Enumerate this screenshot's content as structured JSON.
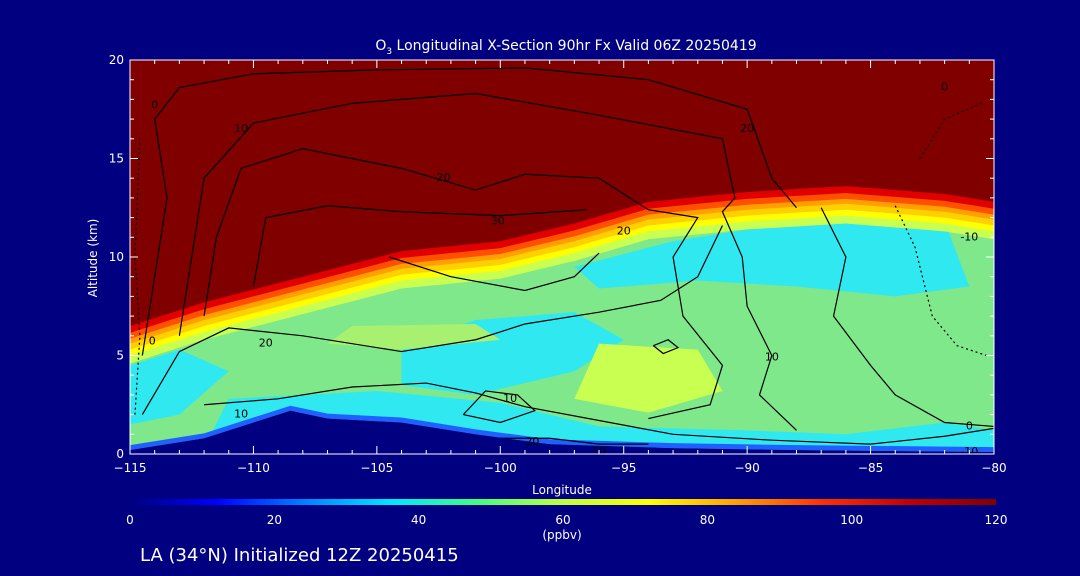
{
  "chart_data": {
    "type": "heatmap",
    "title_prefix": "O",
    "title_sub": "3",
    "title_rest": " Longitudinal X-Section 90hr  Fx Valid 06Z 20250419",
    "xlabel": "Longitude",
    "ylabel": "Altitude (km)",
    "xlim": [
      -115,
      -80
    ],
    "ylim": [
      0,
      20
    ],
    "x_ticks": [
      -115,
      -110,
      -105,
      -100,
      -95,
      -90,
      -85,
      -80
    ],
    "x_tick_labels": [
      "−115",
      "−110",
      "−105",
      "−100",
      "−95",
      "−90",
      "−85",
      "−80"
    ],
    "y_ticks": [
      0,
      5,
      10,
      15,
      20
    ],
    "y_tick_labels": [
      "0",
      "5",
      "10",
      "15",
      "20"
    ],
    "colorbar": {
      "range": [
        0,
        120
      ],
      "ticks": [
        0,
        20,
        40,
        60,
        80,
        100,
        120
      ],
      "tick_labels": [
        "0",
        "20",
        "40",
        "60",
        "80",
        "100",
        "120"
      ],
      "unit": "(ppbv)",
      "colors": [
        "#00007f",
        "#0000ff",
        "#0080ff",
        "#00e5ff",
        "#40ff80",
        "#c0ff40",
        "#ffff00",
        "#ffa000",
        "#ff3000",
        "#c00000",
        "#800000"
      ]
    },
    "field": {
      "description_levels": "ozone field roughly: ~50-60 ppbv near surface, ~60-70 ppbv mid troposphere, >120 ppbv above tropopause",
      "tropopause_km": [
        {
          "lon": -115,
          "km": 6.0
        },
        {
          "lon": -112,
          "km": 7.2
        },
        {
          "lon": -108,
          "km": 8.5
        },
        {
          "lon": -104,
          "km": 9.8
        },
        {
          "lon": -100,
          "km": 10.3
        },
        {
          "lon": -97,
          "km": 11.2
        },
        {
          "lon": -94,
          "km": 12.3
        },
        {
          "lon": -90,
          "km": 12.8
        },
        {
          "lon": -86,
          "km": 13.1
        },
        {
          "lon": -82,
          "km": 12.7
        },
        {
          "lon": -80,
          "km": 12.3
        }
      ],
      "terrain_km": [
        {
          "lon": -115,
          "km": 0.2
        },
        {
          "lon": -112,
          "km": 0.8
        },
        {
          "lon": -110,
          "km": 1.6
        },
        {
          "lon": -108.5,
          "km": 2.2
        },
        {
          "lon": -107,
          "km": 1.8
        },
        {
          "lon": -104,
          "km": 1.6
        },
        {
          "lon": -101,
          "km": 1.0
        },
        {
          "lon": -98,
          "km": 0.5
        },
        {
          "lon": -93,
          "km": 0.3
        },
        {
          "lon": -88,
          "km": 0.2
        },
        {
          "lon": -80,
          "km": 0.1
        }
      ]
    },
    "contour_labels": [
      {
        "text": "0",
        "lon": -114,
        "km": 17.7
      },
      {
        "text": "10",
        "lon": -110.5,
        "km": 16.5
      },
      {
        "text": "20",
        "lon": -102.3,
        "km": 14.0
      },
      {
        "text": "30",
        "lon": -100.1,
        "km": 11.8
      },
      {
        "text": "20",
        "lon": -95,
        "km": 11.3
      },
      {
        "text": "20",
        "lon": -90,
        "km": 16.5
      },
      {
        "text": "0",
        "lon": -82,
        "km": 18.6
      },
      {
        "text": "-10",
        "lon": -81,
        "km": 11.0
      },
      {
        "text": "0",
        "lon": -114.1,
        "km": 5.7
      },
      {
        "text": "20",
        "lon": -109.5,
        "km": 5.6
      },
      {
        "text": "10",
        "lon": -110.5,
        "km": 2.0
      },
      {
        "text": "10",
        "lon": -89,
        "km": 4.9
      },
      {
        "text": "10",
        "lon": -99.6,
        "km": 2.8
      },
      {
        "text": "20",
        "lon": -98.7,
        "km": 0.6
      },
      {
        "text": "0",
        "lon": -81,
        "km": 1.4
      },
      {
        "text": "10",
        "lon": -96,
        "km": 0.1
      },
      {
        "text": "-10",
        "lon": -81,
        "km": 0.1
      }
    ]
  },
  "footer": {
    "caption": "LA (34°N) Initialized 12Z 20250415"
  }
}
